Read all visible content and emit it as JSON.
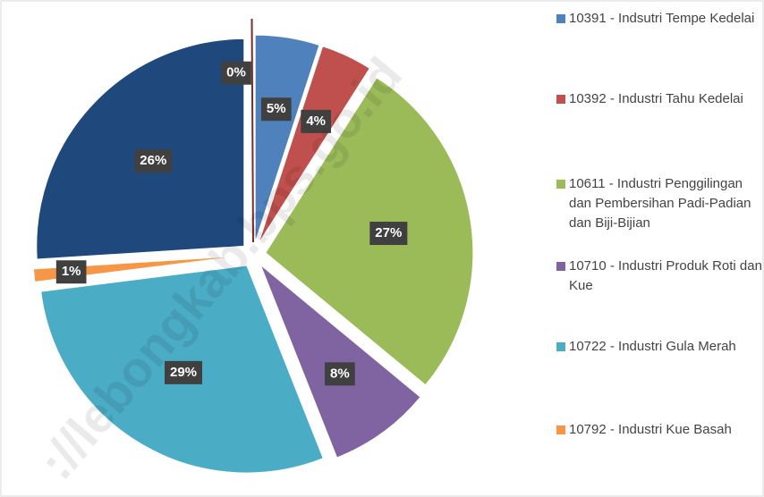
{
  "chart_data": {
    "type": "pie",
    "categories": [
      "10391 - Indsutri Tempe Kedelai",
      "10392 - Industri Tahu Kedelai",
      "10611 - Industri Penggilingan dan Pembersihan Padi-Padian dan Biji-Bijian",
      "10710 - Industri Produk Roti dan Kue",
      "10722 - Industri Gula Merah",
      "10792 - Industri Kue Basah",
      null,
      null
    ],
    "values": [
      5,
      4,
      27,
      8,
      29,
      1,
      26,
      0
    ],
    "value_labels": [
      "5%",
      "4%",
      "27%",
      "8%",
      "29%",
      "1%",
      "26%",
      "0%"
    ],
    "colors": [
      "#4f81bd",
      "#c0504d",
      "#9bbb59",
      "#8064a2",
      "#4bacc6",
      "#f79646",
      "#1f497d",
      "#7b2c2a"
    ],
    "watermark": "://lebongkab.bps.go.id"
  }
}
